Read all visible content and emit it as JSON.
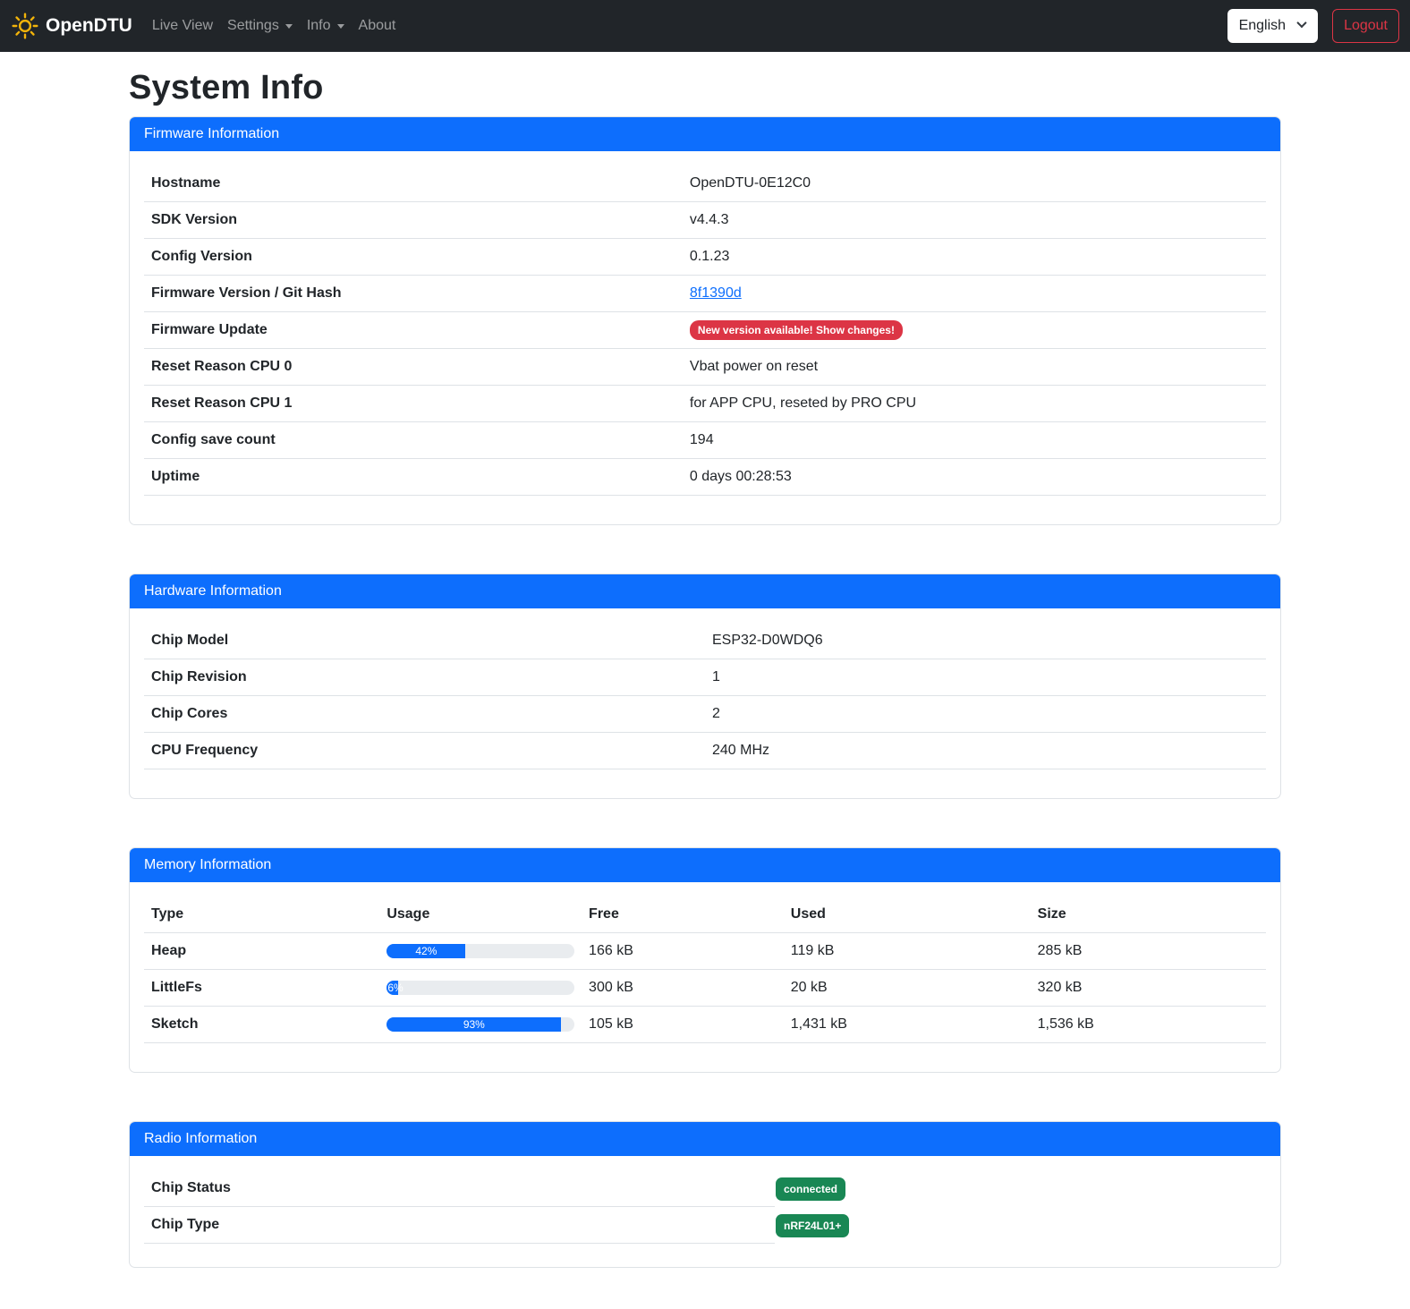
{
  "colors": {
    "primary": "#0d6efd",
    "danger": "#dc3545",
    "success": "#198754",
    "navbar-bg": "#212529",
    "logo-yellow": "#f2b30a",
    "link": "#0d6efd"
  },
  "navbar": {
    "brand": "OpenDTU",
    "items": [
      {
        "label": "Live View",
        "caret": false
      },
      {
        "label": "Settings",
        "caret": true
      },
      {
        "label": "Info",
        "caret": true
      },
      {
        "label": "About",
        "caret": false
      }
    ],
    "language": "English",
    "logout_label": "Logout"
  },
  "page": {
    "title": "System Info"
  },
  "firmware": {
    "header": "Firmware Information",
    "rows": [
      {
        "label": "Hostname",
        "value": "OpenDTU-0E12C0",
        "type": "text"
      },
      {
        "label": "SDK Version",
        "value": "v4.4.3",
        "type": "text"
      },
      {
        "label": "Config Version",
        "value": "0.1.23",
        "type": "text"
      },
      {
        "label": "Firmware Version / Git Hash",
        "value": "8f1390d",
        "type": "link"
      },
      {
        "label": "Firmware Update",
        "value": "New version available! Show changes!",
        "type": "badge_danger"
      },
      {
        "label": "Reset Reason CPU 0",
        "value": "Vbat power on reset",
        "type": "text"
      },
      {
        "label": "Reset Reason CPU 1",
        "value": "for APP CPU, reseted by PRO CPU",
        "type": "text"
      },
      {
        "label": "Config save count",
        "value": "194",
        "type": "text"
      },
      {
        "label": "Uptime",
        "value": "0 days 00:28:53",
        "type": "text"
      }
    ]
  },
  "hardware": {
    "header": "Hardware Information",
    "rows": [
      {
        "label": "Chip Model",
        "value": "ESP32-D0WDQ6",
        "type": "text"
      },
      {
        "label": "Chip Revision",
        "value": "1",
        "type": "text"
      },
      {
        "label": "Chip Cores",
        "value": "2",
        "type": "text"
      },
      {
        "label": "CPU Frequency",
        "value": "240 MHz",
        "type": "text"
      }
    ]
  },
  "memory": {
    "header": "Memory Information",
    "columns": [
      "Type",
      "Usage",
      "Free",
      "Used",
      "Size"
    ],
    "rows": [
      {
        "type": "Heap",
        "usage_percent": 42,
        "usage_label": "42%",
        "free": "166 kB",
        "used": "119 kB",
        "size": "285 kB"
      },
      {
        "type": "LittleFs",
        "usage_percent": 6,
        "usage_label": "6%",
        "free": "300 kB",
        "used": "20 kB",
        "size": "320 kB"
      },
      {
        "type": "Sketch",
        "usage_percent": 93,
        "usage_label": "93%",
        "free": "105 kB",
        "used": "1,431 kB",
        "size": "1,536 kB"
      }
    ]
  },
  "radio": {
    "header": "Radio Information",
    "rows": [
      {
        "label": "Chip Status",
        "badge": "connected"
      },
      {
        "label": "Chip Type",
        "badge": "nRF24L01+"
      }
    ]
  }
}
